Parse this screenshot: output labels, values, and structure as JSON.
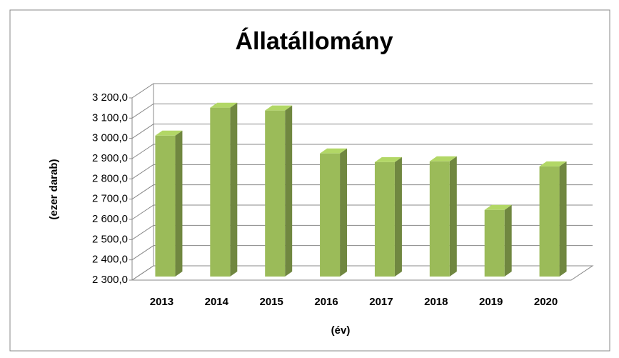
{
  "chart_data": {
    "type": "bar3d",
    "title": "Állatállomány",
    "x_label": "(év)",
    "y_label": "(ezer darab)",
    "categories": [
      "2013",
      "2014",
      "2015",
      "2016",
      "2017",
      "2018",
      "2019",
      "2020"
    ],
    "values": [
      2996,
      3134,
      3120,
      2908,
      2865,
      2869,
      2629,
      2844
    ],
    "color": "#9bbb59",
    "ylim": [
      2300,
      3200
    ],
    "yticks": [
      {
        "value": 2300,
        "label": "2 300,0"
      },
      {
        "value": 2400,
        "label": "2 400,0"
      },
      {
        "value": 2500,
        "label": "2 500,0"
      },
      {
        "value": 2600,
        "label": "2 600,0"
      },
      {
        "value": 2700,
        "label": "2 700,0"
      },
      {
        "value": 2800,
        "label": "2 800,0"
      },
      {
        "value": 2900,
        "label": "2 900,0"
      },
      {
        "value": 3000,
        "label": "3 000,0"
      },
      {
        "value": 3100,
        "label": "3 100,0"
      },
      {
        "value": 3200,
        "label": "3 200,0"
      }
    ],
    "grid": true
  }
}
